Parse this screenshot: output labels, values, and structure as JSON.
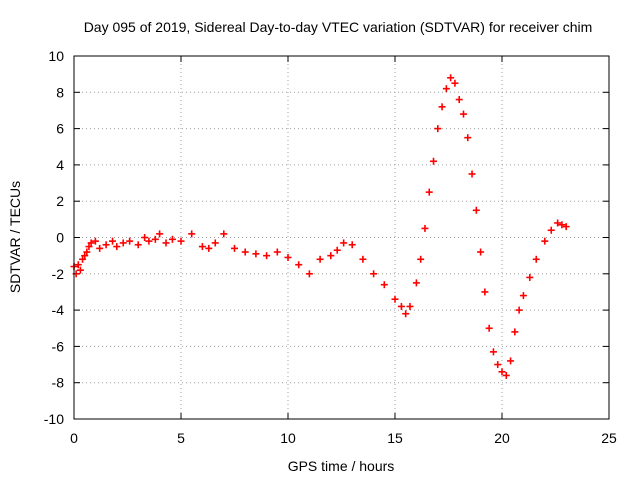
{
  "chart_data": {
    "type": "scatter",
    "title": "Day 095 of 2019, Sidereal Day-to-day VTEC variation (SDTVAR) for receiver chim",
    "xlabel": "GPS time / hours",
    "ylabel": "SDTVAR / TECUs",
    "xlim": [
      0,
      25
    ],
    "ylim": [
      -10,
      10
    ],
    "x_ticks": [
      0,
      5,
      10,
      15,
      20,
      25
    ],
    "y_ticks": [
      -10,
      -8,
      -6,
      -4,
      -2,
      0,
      2,
      4,
      6,
      8,
      10
    ],
    "grid": true,
    "marker": "+",
    "series_color": "#ff0000",
    "series": [
      {
        "name": "chim",
        "x": [
          0.0,
          0.1,
          0.2,
          0.3,
          0.4,
          0.5,
          0.6,
          0.7,
          0.8,
          1.0,
          1.2,
          1.5,
          1.8,
          2.0,
          2.3,
          2.6,
          3.0,
          3.3,
          3.5,
          3.8,
          4.0,
          4.3,
          4.6,
          5.0,
          5.5,
          6.0,
          6.3,
          6.6,
          7.0,
          7.5,
          8.0,
          8.5,
          9.0,
          9.5,
          10.0,
          10.5,
          11.0,
          11.5,
          12.0,
          12.3,
          12.6,
          13.0,
          13.5,
          14.0,
          14.5,
          15.0,
          15.3,
          15.5,
          15.7,
          16.0,
          16.2,
          16.4,
          16.6,
          16.8,
          17.0,
          17.2,
          17.4,
          17.6,
          17.8,
          18.0,
          18.2,
          18.4,
          18.6,
          18.8,
          19.0,
          19.2,
          19.4,
          19.6,
          19.8,
          20.0,
          20.2,
          20.4,
          20.6,
          20.8,
          21.0,
          21.3,
          21.6,
          22.0,
          22.3,
          22.6,
          22.8,
          23.0
        ],
        "y": [
          -1.6,
          -2.0,
          -1.5,
          -1.8,
          -1.2,
          -1.0,
          -0.8,
          -0.5,
          -0.3,
          -0.2,
          -0.6,
          -0.4,
          -0.2,
          -0.5,
          -0.3,
          -0.2,
          -0.4,
          0.0,
          -0.2,
          -0.1,
          0.2,
          -0.3,
          -0.1,
          -0.2,
          0.2,
          -0.5,
          -0.6,
          -0.3,
          0.2,
          -0.6,
          -0.8,
          -0.9,
          -1.0,
          -0.8,
          -1.1,
          -1.5,
          -2.0,
          -1.2,
          -1.0,
          -0.7,
          -0.3,
          -0.4,
          -1.2,
          -2.0,
          -2.6,
          -3.4,
          -3.8,
          -4.2,
          -3.8,
          -2.5,
          -1.2,
          0.5,
          2.5,
          4.2,
          6.0,
          7.2,
          8.2,
          8.8,
          8.5,
          7.6,
          6.8,
          5.5,
          3.5,
          1.5,
          -0.8,
          -3.0,
          -5.0,
          -6.3,
          -7.0,
          -7.4,
          -7.6,
          -6.8,
          -5.2,
          -4.0,
          -3.2,
          -2.2,
          -1.2,
          -0.2,
          0.4,
          0.8,
          0.7,
          0.6
        ]
      }
    ]
  }
}
